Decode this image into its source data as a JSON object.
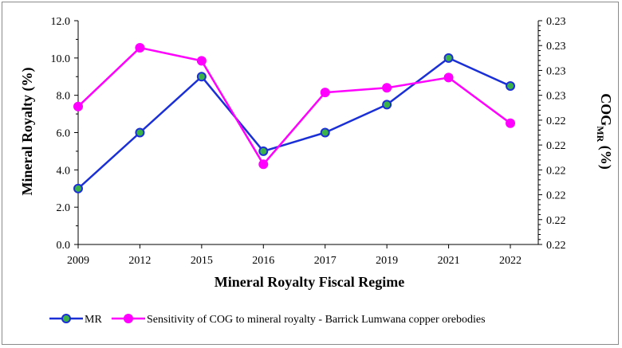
{
  "chart_data": {
    "type": "line",
    "categories": [
      "2009",
      "2012",
      "2015",
      "2016",
      "2017",
      "2019",
      "2021",
      "2022"
    ],
    "xlabel": "Mineral Royalty Fiscal Regime",
    "ylabel": "Mineral Royalty (%)",
    "y2label_main": "COG",
    "y2label_sub": "MR",
    "y2label_unit": " (%)",
    "ylim": [
      0,
      12
    ],
    "y_ticks": [
      "0.0",
      "2.0",
      "4.0",
      "6.0",
      "8.0",
      "10.0",
      "12.0"
    ],
    "y2_ticks": [
      "0.22",
      "0.22",
      "0.22",
      "0.22",
      "0.22",
      "0.22",
      "0.23",
      "0.23",
      "0.23",
      "0.23"
    ],
    "grid": false,
    "legend_position": "bottom",
    "series": [
      {
        "name": "MR",
        "axis": "left",
        "color": "#1a2fd6",
        "marker_fill": "#3cb34a",
        "values": [
          3.0,
          6.0,
          9.0,
          5.0,
          6.0,
          7.5,
          10.0,
          8.5
        ]
      },
      {
        "name": "Sensitivity of COG to mineral royalty - Barrick Lumwana copper orebodies",
        "axis": "right",
        "color": "#ff00ff",
        "marker_fill": "#ff00ff",
        "values_on_left_scale": [
          7.4,
          10.55,
          9.85,
          4.3,
          8.15,
          8.4,
          8.95,
          6.5
        ]
      }
    ]
  }
}
